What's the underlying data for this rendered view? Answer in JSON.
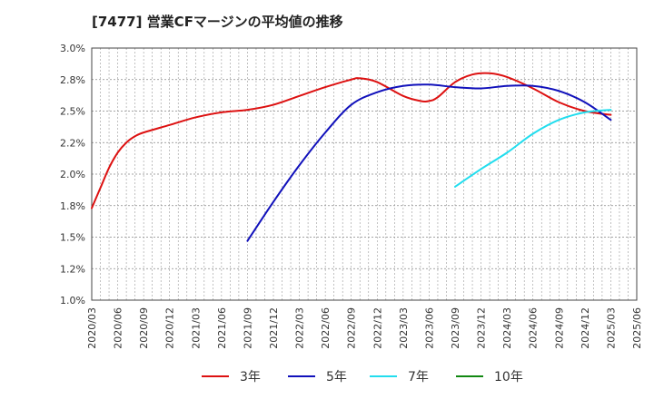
{
  "title": "[7477]  営業CFマージンの平均値の推移",
  "chart_data": {
    "type": "line",
    "title": "[7477]  営業CFマージンの平均値の推移",
    "xlabel": "",
    "ylabel": "",
    "ylim": [
      1.0,
      3.0
    ],
    "y_ticks": [
      "1.0%",
      "1.2%",
      "1.5%",
      "1.8%",
      "2.0%",
      "2.2%",
      "2.5%",
      "2.8%",
      "3.0%"
    ],
    "x_ticks": [
      "2020/03",
      "2020/06",
      "2020/09",
      "2020/12",
      "2021/03",
      "2021/06",
      "2021/09",
      "2021/12",
      "2022/03",
      "2022/06",
      "2022/09",
      "2022/12",
      "2023/03",
      "2023/06",
      "2023/09",
      "2023/12",
      "2024/03",
      "2024/06",
      "2024/09",
      "2024/12",
      "2025/03",
      "2025/06"
    ],
    "grid": true,
    "legend_position": "bottom",
    "series": [
      {
        "name": "3年",
        "color": "#dd1111",
        "x": [
          "2020/03",
          "2020/04",
          "2020/05",
          "2020/06",
          "2020/07",
          "2020/08",
          "2020/09",
          "2020/12",
          "2021/03",
          "2021/06",
          "2021/09",
          "2021/12",
          "2022/03",
          "2022/06",
          "2022/09",
          "2022/10",
          "2022/12",
          "2023/03",
          "2023/05",
          "2023/06",
          "2023/07",
          "2023/09",
          "2023/11",
          "2024/01",
          "2024/03",
          "2024/06",
          "2024/09",
          "2024/12",
          "2025/03"
        ],
        "values": [
          1.73,
          1.89,
          2.05,
          2.17,
          2.25,
          2.3,
          2.33,
          2.39,
          2.45,
          2.49,
          2.51,
          2.55,
          2.62,
          2.69,
          2.75,
          2.76,
          2.73,
          2.62,
          2.58,
          2.58,
          2.61,
          2.73,
          2.79,
          2.8,
          2.77,
          2.68,
          2.57,
          2.5,
          2.47
        ]
      },
      {
        "name": "5年",
        "color": "#1111bb",
        "x": [
          "2021/09",
          "2021/12",
          "2022/03",
          "2022/06",
          "2022/09",
          "2022/12",
          "2023/03",
          "2023/06",
          "2023/09",
          "2023/12",
          "2024/03",
          "2024/06",
          "2024/09",
          "2024/12",
          "2025/03"
        ],
        "values": [
          1.47,
          1.78,
          2.07,
          2.33,
          2.55,
          2.65,
          2.7,
          2.71,
          2.69,
          2.68,
          2.7,
          2.7,
          2.66,
          2.57,
          2.43
        ]
      },
      {
        "name": "7年",
        "color": "#22ddee",
        "x": [
          "2023/09",
          "2023/12",
          "2024/03",
          "2024/06",
          "2024/09",
          "2024/12",
          "2025/03"
        ],
        "values": [
          1.9,
          2.04,
          2.17,
          2.32,
          2.43,
          2.49,
          2.51
        ]
      },
      {
        "name": "10年",
        "color": "#118811",
        "x": [],
        "values": []
      }
    ]
  }
}
